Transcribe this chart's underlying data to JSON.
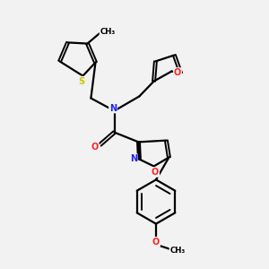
{
  "background_color": "#f2f2f2",
  "bond_color": "#000000",
  "atom_colors": {
    "N": "#2020ff",
    "O": "#ff2020",
    "S": "#c8c800",
    "C": "#000000"
  },
  "figsize": [
    3.0,
    3.0
  ],
  "dpi": 100,
  "xlim": [
    0,
    10
  ],
  "ylim": [
    0,
    10
  ]
}
